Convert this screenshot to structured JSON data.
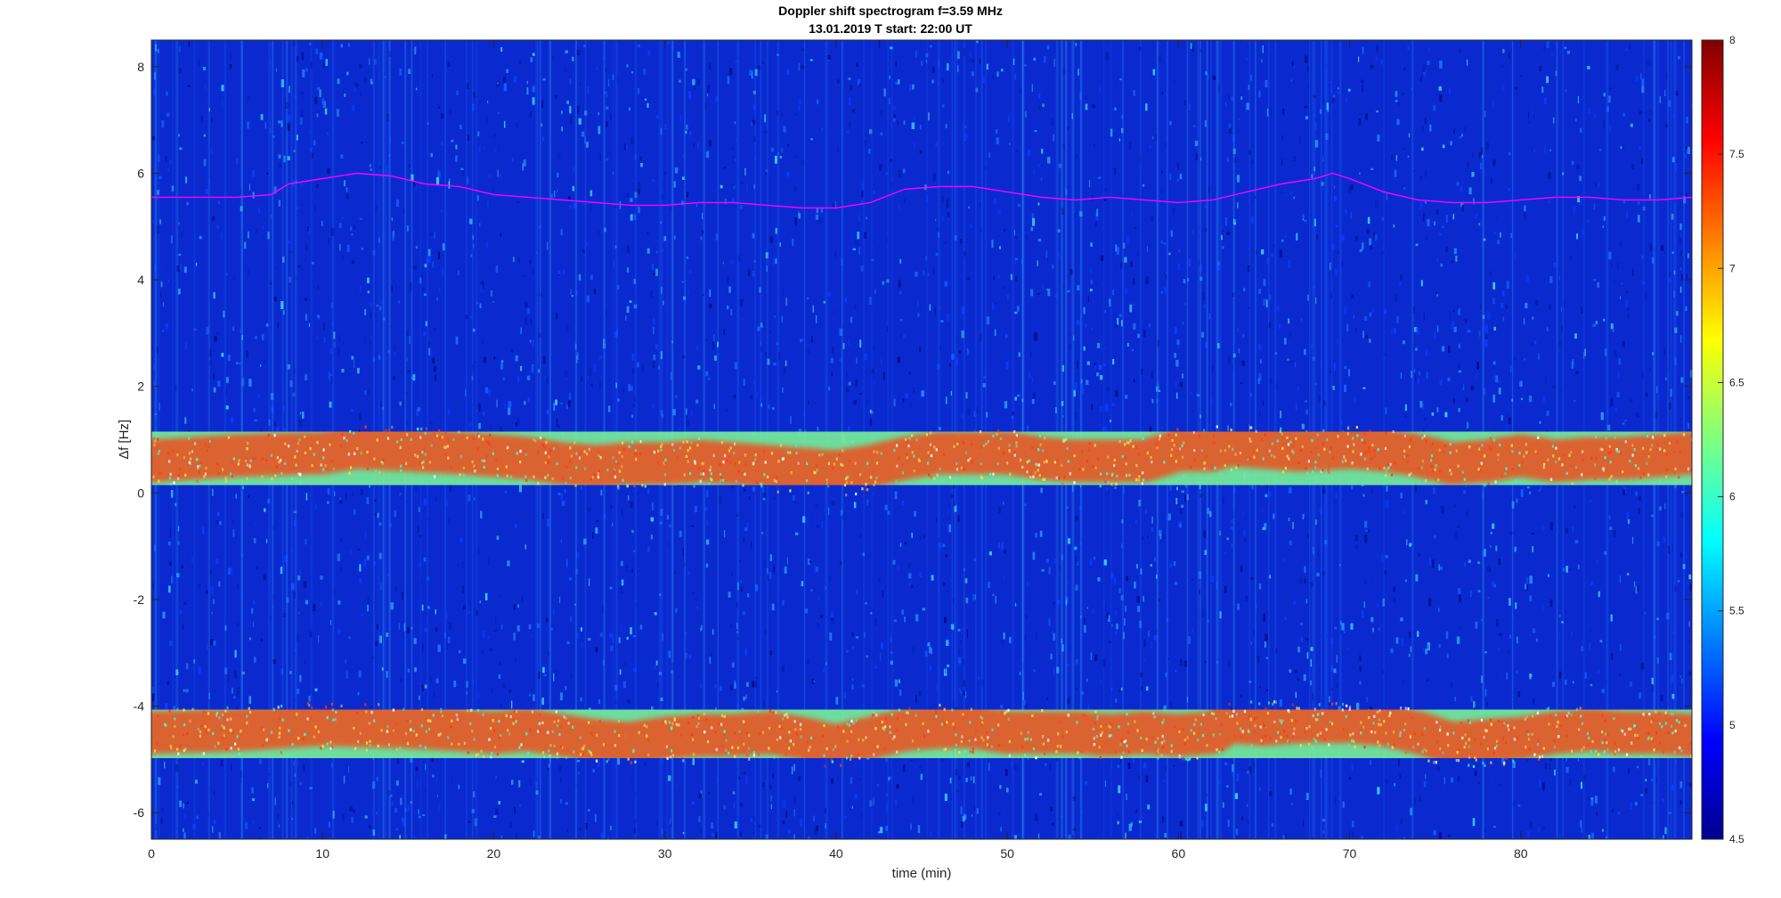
{
  "chart_data": {
    "type": "heatmap",
    "title": "Doppler shift spectrogram f=3.59 MHz",
    "subtitle": "13.01.2019    T start: 22:00 UT",
    "xlabel": "time (min)",
    "ylabel": "∆f [Hz]",
    "xlim": [
      0,
      90
    ],
    "ylim": [
      -6.5,
      8.5
    ],
    "x_ticks": [
      "0",
      "10",
      "20",
      "30",
      "40",
      "50",
      "60",
      "70",
      "80"
    ],
    "y_ticks": [
      "-6",
      "-4",
      "-2",
      "0",
      "2",
      "4",
      "6",
      "8"
    ],
    "colorbar": {
      "colormap": "jet",
      "range": [
        4.5,
        8
      ],
      "ticks": [
        "4.5",
        "5",
        "5.5",
        "6",
        "6.5",
        "7",
        "7.5",
        "8"
      ]
    },
    "grid": false,
    "traces": [
      {
        "color": "#ff00ff",
        "x": [
          0,
          5,
          7,
          8,
          10,
          12,
          14,
          16,
          18,
          20,
          22,
          24,
          26,
          28,
          30,
          32,
          34,
          36,
          38,
          40,
          42,
          44,
          46,
          48,
          50,
          52,
          54,
          56,
          58,
          60,
          62,
          64,
          66,
          68,
          69,
          70,
          72,
          74,
          76,
          78,
          80,
          82,
          84,
          86,
          88,
          90
        ],
        "y": [
          5.55,
          5.55,
          5.6,
          5.8,
          5.9,
          6.0,
          5.95,
          5.8,
          5.75,
          5.6,
          5.55,
          5.5,
          5.45,
          5.4,
          5.4,
          5.45,
          5.45,
          5.4,
          5.35,
          5.35,
          5.45,
          5.7,
          5.75,
          5.75,
          5.65,
          5.55,
          5.5,
          5.55,
          5.5,
          5.45,
          5.5,
          5.65,
          5.8,
          5.9,
          6.0,
          5.9,
          5.65,
          5.5,
          5.45,
          5.45,
          5.5,
          5.55,
          5.55,
          5.5,
          5.5,
          5.55
        ]
      }
    ],
    "bands": [
      {
        "x": [
          0,
          5,
          10,
          12,
          15,
          18,
          20,
          22,
          24,
          26,
          28,
          30,
          32,
          34,
          36,
          38,
          40,
          42,
          44,
          46,
          48,
          50,
          52,
          54,
          56,
          58,
          60,
          62,
          63,
          65,
          67,
          70,
          72,
          74,
          76,
          78,
          80,
          82,
          84,
          86,
          88,
          90
        ],
        "y": [
          0.6,
          0.7,
          0.75,
          0.85,
          0.8,
          0.75,
          0.7,
          0.65,
          0.55,
          0.5,
          0.55,
          0.55,
          0.6,
          0.55,
          0.5,
          0.45,
          0.4,
          0.5,
          0.65,
          0.75,
          0.75,
          0.75,
          0.65,
          0.6,
          0.6,
          0.6,
          0.8,
          0.8,
          0.9,
          0.85,
          0.8,
          0.85,
          0.8,
          0.7,
          0.55,
          0.6,
          0.7,
          0.6,
          0.65,
          0.65,
          0.7,
          0.75
        ]
      },
      {
        "x": [
          0,
          5,
          10,
          15,
          18,
          20,
          22,
          24,
          26,
          28,
          30,
          32,
          34,
          36,
          38,
          40,
          42,
          44,
          46,
          48,
          50,
          52,
          54,
          56,
          58,
          60,
          62,
          63,
          65,
          67,
          70,
          72,
          74,
          76,
          78,
          80,
          82,
          84,
          86,
          88,
          90
        ],
        "y": [
          -4.5,
          -4.45,
          -4.35,
          -4.4,
          -4.45,
          -4.5,
          -4.45,
          -4.55,
          -4.65,
          -4.7,
          -4.6,
          -4.55,
          -4.55,
          -4.5,
          -4.6,
          -4.75,
          -4.6,
          -4.45,
          -4.4,
          -4.4,
          -4.5,
          -4.5,
          -4.5,
          -4.55,
          -4.5,
          -4.55,
          -4.5,
          -4.3,
          -4.35,
          -4.3,
          -4.3,
          -4.35,
          -4.5,
          -4.7,
          -4.65,
          -4.6,
          -4.5,
          -4.45,
          -4.5,
          -4.5,
          -4.55
        ]
      }
    ]
  }
}
